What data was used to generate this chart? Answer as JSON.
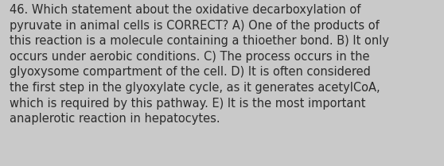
{
  "lines": [
    "46. Which statement about the oxidative decarboxylation of",
    "pyruvate in animal cells is CORRECT? A) One of the products of",
    "this reaction is a molecule containing a thioether bond. B) It only",
    "occurs under aerobic conditions. C) The process occurs in the",
    "glyoxysome compartment of the cell. D) It is often considered",
    "the first step in the glyoxylate cycle, as it generates acetylCoA,",
    "which is required by this pathway. E) It is the most important",
    "anaplerotic reaction in hepatocytes."
  ],
  "background_color": "#c9c9c9",
  "text_color": "#2b2b2b",
  "font_size": 10.5,
  "fig_width": 5.58,
  "fig_height": 2.09,
  "dpi": 100
}
